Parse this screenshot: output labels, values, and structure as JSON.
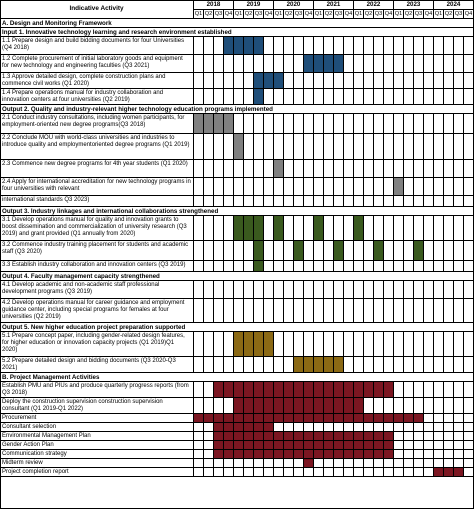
{
  "header": {
    "activity_label": "Indicative Activity",
    "years": [
      "2018",
      "2019",
      "2020",
      "2021",
      "2022",
      "2023",
      "2024"
    ],
    "quarter_labels": [
      "Q1",
      "Q2",
      "Q3",
      "Q4"
    ]
  },
  "colors": {
    "design": "#1f4e79",
    "output1": "#1f4e79",
    "output2": "#808080",
    "output3": "#3a5a1e",
    "output5": "#8b6914",
    "management": "#7b1621",
    "section_bg": "#ffffff"
  },
  "rows": [
    {
      "text": "A. Design and Monitoring Framework",
      "kind": "section",
      "h": 9
    },
    {
      "text": "Input 1. Innovative technology learning and research environment established",
      "kind": "section",
      "h": 9
    },
    {
      "text": "1.1 Prepare design and build bidding documents for four Universities (Q4 2018)",
      "kind": "act",
      "h": 18,
      "group": "output1",
      "fill": [
        [
          3,
          6
        ]
      ]
    },
    {
      "text": "1.2 Complete procurement of initial laboratory goods and equipment for new technology and engineering faculties (Q3 2021)",
      "kind": "act",
      "h": 18,
      "group": "output1",
      "fill": [
        [
          11,
          14
        ]
      ]
    },
    {
      "text": "1.3 Approve detailed design, complete construction plans and commence civil works (Q1 2020)",
      "kind": "act",
      "h": 16,
      "group": "output1",
      "fill": [
        [
          6,
          8
        ]
      ]
    },
    {
      "text": "1.4 Prepare operations manual for industry collaboration and innovation centers at four universities (Q2 2019)",
      "kind": "act",
      "h": 16,
      "group": "output1",
      "fill": [
        [
          6,
          6
        ]
      ]
    },
    {
      "text": "Output 2. Quality and industry-relevant higher technology education programs implemented",
      "kind": "section",
      "h": 9
    },
    {
      "text": "2.1 Conduct industry consultations, including women participants, for employment-oriented new degree programs(Q3 2018)",
      "kind": "act",
      "h": 20,
      "group": "output2",
      "fill": [
        [
          0,
          3
        ]
      ]
    },
    {
      "text": "2.2 Conclude MOU with world-class universities and industries to introduce quality and employmentoriented degree programs (Q1 2019)",
      "kind": "act",
      "h": 26,
      "group": "output2",
      "fill": [
        [
          4,
          4
        ]
      ]
    },
    {
      "text": "2.3 Commence new degree programs for 4th year students (Q1 2020)",
      "kind": "act",
      "h": 18,
      "group": "output2",
      "fill": [
        [
          8,
          8
        ]
      ]
    },
    {
      "text": "2.4 Apply for international accreditation for new technology programs in four universities with relevant",
      "kind": "act",
      "h": 18,
      "group": "output2",
      "fill": [
        [
          20,
          20
        ]
      ]
    },
    {
      "text": "international standards Q3 2023)",
      "kind": "act",
      "h": 11,
      "group": "output2",
      "fill": []
    },
    {
      "text": "Output 3. Industry linkages and international collaborations strengthened",
      "kind": "section",
      "h": 9
    },
    {
      "text": "3.1 Develop operations manual for quality and innovation grants to boost dissemination and commercialization of university research (Q3 2019) and grant provided (Q1 annually from 2020)",
      "kind": "act",
      "h": 25,
      "group": "output3",
      "fill": [
        [
          4,
          6
        ],
        [
          8,
          8
        ],
        [
          12,
          12
        ],
        [
          16,
          16
        ]
      ]
    },
    {
      "text": "3.2 Commence industry training placement for students and academic staff (Q3 2020)",
      "kind": "act",
      "h": 20,
      "group": "output3",
      "fill": [
        [
          6,
          6
        ],
        [
          10,
          10
        ],
        [
          14,
          14
        ],
        [
          18,
          18
        ],
        [
          22,
          22
        ]
      ]
    },
    {
      "text": "3.3 Establish industry collaboration and innovation centers (Q3 2019)",
      "kind": "act",
      "h": 11,
      "group": "output3",
      "fill": [
        [
          6,
          6
        ]
      ]
    },
    {
      "text": "Output 4. Faculty management capacity strengthened",
      "kind": "section",
      "h": 9
    },
    {
      "text": "4.1 Develop academic and non-academic staff professional development programs (Q3 2019)",
      "kind": "act",
      "h": 18,
      "group": "output4",
      "fill": []
    },
    {
      "text": "4.2 Develop operations manual for career guidance and employment guidance center, including special programs for females at four universities (Q2 2019)",
      "kind": "act",
      "h": 24,
      "group": "output4",
      "fill": []
    },
    {
      "text": "Output 5. New higher education project preparation supported",
      "kind": "section",
      "h": 9
    },
    {
      "text": "5.1 Prepare concept paper, including gender-related design features, for higher education or innovation capacity projects (Q1 2019)Q1 2020)",
      "kind": "act",
      "h": 25,
      "group": "output5",
      "fill": [
        [
          4,
          7
        ]
      ]
    },
    {
      "text": "5.2 Prepare detailed design and bidding documents (Q3 2020-Q3 2021)",
      "kind": "act",
      "h": 16,
      "group": "output5",
      "fill": [
        [
          10,
          14
        ]
      ]
    },
    {
      "text": "B. Project Management Activities",
      "kind": "section",
      "h": 9
    },
    {
      "text": "Establish PMU and PIUs and produce quarterly progress reports (from Q3 2018)",
      "kind": "act",
      "h": 16,
      "group": "management",
      "fill": [
        [
          2,
          19
        ]
      ]
    },
    {
      "text": "Deploy the construction supervision construction supervision consultant (Q1 2019-Q1 2022)",
      "kind": "act",
      "h": 16,
      "group": "management",
      "fill": [
        [
          4,
          16
        ]
      ]
    },
    {
      "text": "Procurement",
      "kind": "act",
      "h": 9,
      "group": "management",
      "fill": [
        [
          0,
          22
        ]
      ]
    },
    {
      "text": "Consultant selection",
      "kind": "act",
      "h": 9,
      "group": "management",
      "fill": [
        [
          2,
          7
        ]
      ]
    },
    {
      "text": "Environmental Management Plan",
      "kind": "act",
      "h": 9,
      "group": "management",
      "fill": [
        [
          2,
          19
        ]
      ]
    },
    {
      "text": "Gender Action Plan",
      "kind": "act",
      "h": 9,
      "group": "management",
      "fill": [
        [
          2,
          19
        ]
      ]
    },
    {
      "text": "Communication strategy",
      "kind": "act",
      "h": 9,
      "group": "management",
      "fill": [
        [
          2,
          19
        ]
      ]
    },
    {
      "text": "Midterm review",
      "kind": "act",
      "h": 9,
      "group": "management",
      "fill": [
        [
          11,
          11
        ]
      ]
    },
    {
      "text": "Project completion report",
      "kind": "act",
      "h": 9,
      "group": "management",
      "fill": [
        [
          24,
          26
        ]
      ]
    }
  ]
}
